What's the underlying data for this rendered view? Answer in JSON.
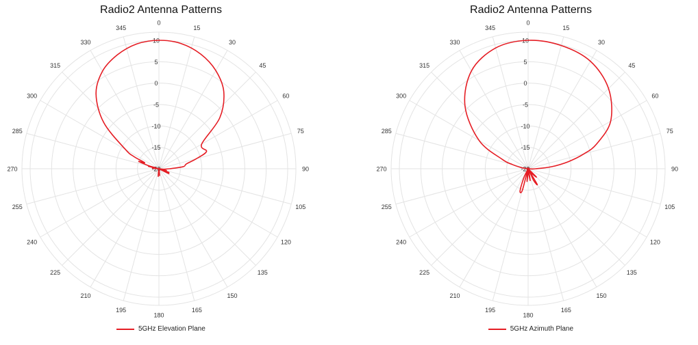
{
  "colors": {
    "series": "#e51c23",
    "grid": "#e3e3e3",
    "label": "#333333"
  },
  "chart_data": [
    {
      "type": "polar-line",
      "title": "Radio2 Antenna Patterns",
      "angle_unit": "degrees",
      "angle_ticks": [
        "0",
        "15",
        "30",
        "45",
        "60",
        "75",
        "90",
        "105",
        "120",
        "135",
        "150",
        "165",
        "180",
        "195",
        "210",
        "225",
        "240",
        "255",
        "270",
        "285",
        "300",
        "315",
        "330",
        "345"
      ],
      "radial_ticks": [
        "-20",
        "-15",
        "-10",
        "-5",
        "0",
        "5",
        "10"
      ],
      "rlim": [
        -20,
        10
      ],
      "grid": true,
      "legend_position": "bottom",
      "series": [
        {
          "name": "5GHz Elevation Plane",
          "angles": [
            0,
            10,
            20,
            30,
            40,
            50,
            60,
            70,
            75,
            80,
            85,
            88,
            90,
            93,
            96,
            100,
            103,
            106,
            110,
            113,
            116,
            120,
            130,
            140,
            150,
            160,
            170,
            175,
            180,
            185,
            190,
            200,
            220,
            240,
            260,
            270,
            275,
            280,
            283,
            285,
            287,
            290,
            293,
            296,
            300,
            310,
            320,
            330,
            340,
            350
          ],
          "values": [
            10,
            9.7,
            8.5,
            6.5,
            3.5,
            -1.5,
            -8.5,
            -8.2,
            -11,
            -13.5,
            -14.2,
            -16.5,
            -17.5,
            -18.5,
            -19,
            -20,
            -18.2,
            -19.6,
            -17.5,
            -19.3,
            -17.4,
            -20,
            -20,
            -20,
            -20,
            -20,
            -19.7,
            -18.4,
            -20,
            -18.2,
            -20,
            -20,
            -20,
            -20,
            -20,
            -20,
            -18.5,
            -19.3,
            -17.5,
            -19.4,
            -17.3,
            -15,
            -16.4,
            -13.5,
            -11,
            -3.2,
            2.8,
            6.3,
            8.3,
            9.6
          ]
        }
      ]
    },
    {
      "type": "polar-line",
      "title": "Radio2 Antenna Patterns",
      "angle_unit": "degrees",
      "angle_ticks": [
        "0",
        "15",
        "30",
        "45",
        "60",
        "75",
        "90",
        "105",
        "120",
        "135",
        "150",
        "165",
        "180",
        "195",
        "210",
        "225",
        "240",
        "255",
        "270",
        "285",
        "300",
        "315",
        "330",
        "345"
      ],
      "radial_ticks": [
        "-20",
        "-15",
        "-10",
        "-5",
        "0",
        "5",
        "10"
      ],
      "rlim": [
        -20,
        10
      ],
      "grid": true,
      "legend_position": "bottom",
      "series": [
        {
          "name": "5GHz Azimuth Plane",
          "angles": [
            0,
            15,
            30,
            45,
            60,
            70,
            75,
            80,
            85,
            90,
            95,
            100,
            110,
            120,
            130,
            135,
            140,
            145,
            150,
            155,
            160,
            170,
            180,
            185,
            190,
            195,
            200,
            205,
            210,
            215,
            220,
            230,
            240,
            250,
            260,
            270,
            275,
            280,
            285,
            290,
            300,
            315,
            330,
            345
          ],
          "values": [
            10,
            9.8,
            9,
            6.5,
            2.2,
            -3,
            -6.5,
            -10.5,
            -14.5,
            -18.2,
            -19.6,
            -20,
            -20,
            -20,
            -20,
            -17.3,
            -18.3,
            -19.8,
            -15.8,
            -17,
            -20,
            -17.2,
            -20,
            -17,
            -20,
            -14.8,
            -14.5,
            -17.5,
            -20,
            -20,
            -20,
            -20,
            -20,
            -20,
            -20,
            -20,
            -19.7,
            -18.4,
            -16.2,
            -13.6,
            -6.8,
            0.8,
            6.4,
            9.2
          ]
        }
      ]
    }
  ]
}
